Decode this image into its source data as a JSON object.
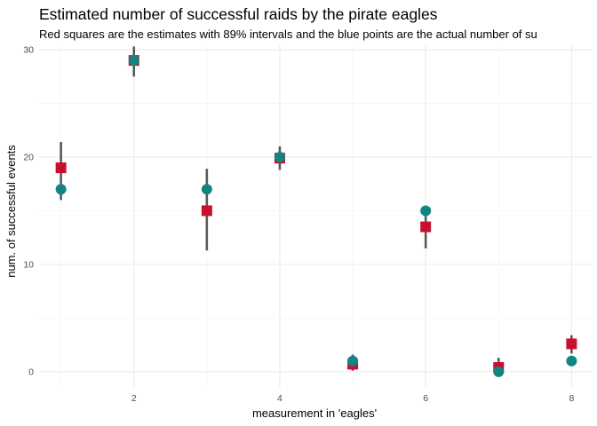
{
  "chart_data": {
    "type": "scatter",
    "title": "Estimated number of successful raids by the pirate eagles",
    "subtitle": "Red squares are the estimates with 89% intervals and the blue points are the actual number of su",
    "xlabel": "measurement in 'eagles'",
    "ylabel": "num. of successful events",
    "xlim": [
      0.7,
      8.3
    ],
    "ylim": [
      -1.5,
      30.5
    ],
    "x_ticks": [
      2,
      4,
      6,
      8
    ],
    "y_ticks": [
      0,
      10,
      20,
      30
    ],
    "grid": true,
    "colors": {
      "estimate": "#c8102e",
      "actual": "#138484",
      "interval": "#595959",
      "grid_major": "#ebebeb",
      "grid_minor": "#f5f5f5"
    },
    "series": [
      {
        "kind": "estimate",
        "x": [
          1,
          2,
          3,
          4,
          5,
          6,
          7,
          8
        ],
        "y": [
          19.0,
          29.0,
          15.0,
          19.9,
          0.7,
          13.5,
          0.4,
          2.6
        ],
        "lower": [
          16.0,
          27.5,
          11.3,
          18.8,
          0.1,
          11.5,
          0.0,
          1.7
        ],
        "upper": [
          21.4,
          30.3,
          18.9,
          21.0,
          1.6,
          15.3,
          1.3,
          3.4
        ]
      },
      {
        "kind": "actual",
        "x": [
          1,
          2,
          3,
          4,
          5,
          6,
          7,
          8
        ],
        "y": [
          17,
          29,
          17,
          20,
          1,
          15,
          0,
          1
        ]
      }
    ]
  }
}
